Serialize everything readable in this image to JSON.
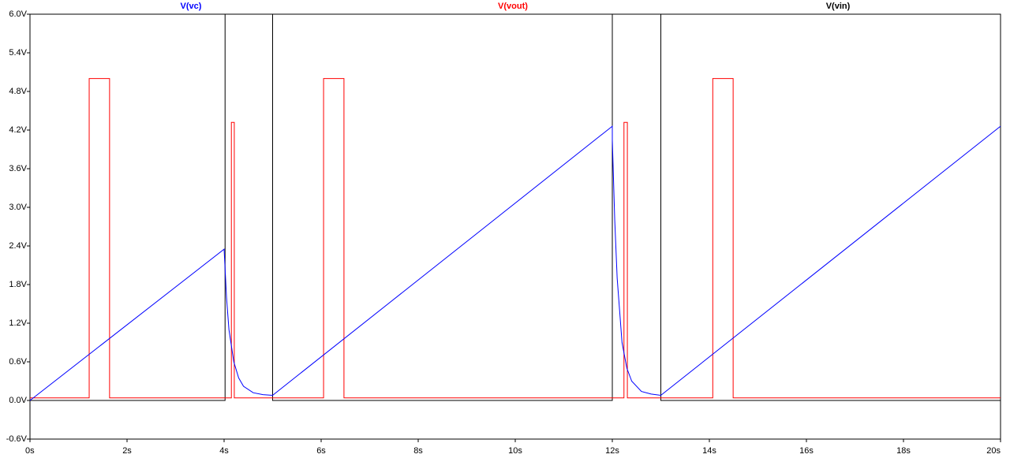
{
  "chart_data": {
    "type": "line",
    "xlim": [
      0,
      20
    ],
    "ylim": [
      -0.6,
      6.0
    ],
    "xticks": [
      {
        "value": 0,
        "label": "0s"
      },
      {
        "value": 2,
        "label": "2s"
      },
      {
        "value": 4,
        "label": "4s"
      },
      {
        "value": 6,
        "label": "6s"
      },
      {
        "value": 8,
        "label": "8s"
      },
      {
        "value": 10,
        "label": "10s"
      },
      {
        "value": 12,
        "label": "12s"
      },
      {
        "value": 14,
        "label": "14s"
      },
      {
        "value": 16,
        "label": "16s"
      },
      {
        "value": 18,
        "label": "18s"
      },
      {
        "value": 20,
        "label": "20s"
      }
    ],
    "yticks": [
      {
        "value": -0.6,
        "label": "-0.6V"
      },
      {
        "value": 0,
        "label": "0.0V"
      },
      {
        "value": 0.6,
        "label": "0.6V"
      },
      {
        "value": 1.2,
        "label": "1.2V"
      },
      {
        "value": 1.8,
        "label": "1.8V"
      },
      {
        "value": 2.4,
        "label": "2.4V"
      },
      {
        "value": 3.0,
        "label": "3.0V"
      },
      {
        "value": 3.6,
        "label": "3.6V"
      },
      {
        "value": 4.2,
        "label": "4.2V"
      },
      {
        "value": 4.8,
        "label": "4.8V"
      },
      {
        "value": 5.4,
        "label": "5.4V"
      },
      {
        "value": 6.0,
        "label": "6.0V"
      }
    ],
    "series": [
      {
        "name": "V(vc)",
        "color": "#0000ff",
        "x": [
          0,
          4.0,
          4.05,
          4.1,
          4.2,
          4.3,
          4.4,
          4.6,
          4.8,
          5.0,
          12.0,
          12.0,
          12.05,
          12.1,
          12.2,
          12.3,
          12.4,
          12.6,
          12.8,
          13.0,
          20
        ],
        "values": [
          0,
          2.35,
          1.6,
          1.1,
          0.6,
          0.35,
          0.22,
          0.12,
          0.09,
          0.08,
          4.26,
          4.05,
          2.8,
          1.9,
          0.9,
          0.5,
          0.3,
          0.14,
          0.1,
          0.08,
          4.26
        ]
      },
      {
        "name": "V(vout)",
        "color": "#ff0000",
        "x": [
          0,
          1.22,
          1.22,
          1.64,
          1.64,
          4.15,
          4.15,
          4.21,
          4.21,
          6.05,
          6.05,
          6.47,
          6.47,
          12.24,
          12.24,
          12.31,
          12.31,
          14.07,
          14.07,
          14.49,
          14.49,
          20
        ],
        "values": [
          0.04,
          0.04,
          5,
          5,
          0.04,
          0.04,
          4.32,
          4.32,
          0.04,
          0.04,
          5,
          5,
          0.04,
          0.04,
          4.32,
          4.32,
          0.04,
          0.04,
          5,
          5,
          0.04,
          0.04
        ]
      },
      {
        "name": "V(vin)",
        "color": "#000000",
        "x": [
          0,
          4.02,
          4.02,
          5,
          5,
          12,
          12,
          13,
          13,
          20
        ],
        "values": [
          0,
          0,
          6,
          6,
          0,
          0,
          6,
          6,
          0,
          0
        ]
      }
    ]
  }
}
